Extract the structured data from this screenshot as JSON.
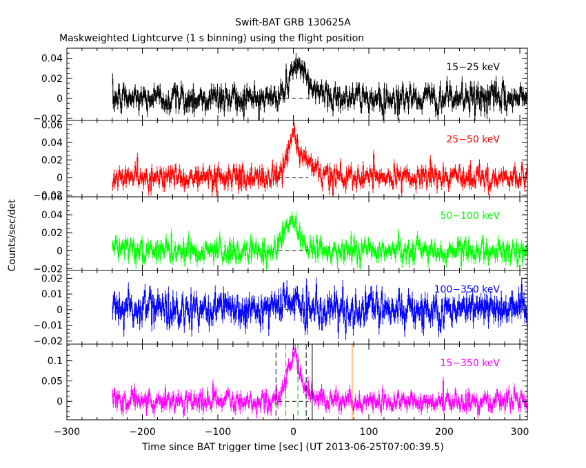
{
  "figure": {
    "title": "Swift-BAT GRB 130625A",
    "subtitle": "Maskweighted Lightcurve (1 s binning) using the flight position",
    "ylabel": "Counts/sec/det",
    "xlabel": "Time since BAT trigger time [sec] (UT 2013-06-25T07:00:39.5)"
  },
  "chart_data": {
    "type": "line",
    "shared_x": {
      "range": [
        -300,
        310
      ],
      "ticks": [
        -300,
        -200,
        -100,
        0,
        100,
        200,
        300
      ],
      "tick_labels": [
        "−300",
        "−200",
        "−100",
        "0",
        "100",
        "200",
        "300"
      ],
      "data_start": -240,
      "data_end": 310,
      "bin": 1
    },
    "panels": [
      {
        "name": "15−25 keV",
        "color": "#000000",
        "ylim": [
          -0.022,
          0.05
        ],
        "yticks": [
          -0.02,
          0,
          0.02,
          0.04
        ],
        "ytick_labels": [
          "−0.02",
          "0",
          "0.02",
          "0.04"
        ],
        "noise_sigma": 0.007,
        "pulse": {
          "peak_time": 5,
          "peak_value": 0.035,
          "rise": 15,
          "decay": 18
        }
      },
      {
        "name": "25−50 keV",
        "color": "#ff0000",
        "ylim": [
          -0.022,
          0.065
        ],
        "yticks": [
          -0.02,
          0,
          0.02,
          0.04,
          0.06
        ],
        "ytick_labels": [
          "−0.02",
          "0",
          "0.02",
          "0.04",
          "0.06"
        ],
        "noise_sigma": 0.0065,
        "pulse": {
          "peak_time": 2,
          "peak_value": 0.045,
          "rise": 15,
          "decay": 13
        }
      },
      {
        "name": "50−100 keV",
        "color": "#00ff00",
        "ylim": [
          -0.022,
          0.06
        ],
        "yticks": [
          -0.02,
          0,
          0.02,
          0.04,
          0.06
        ],
        "ytick_labels": [
          "−0.02",
          "0",
          "0.02",
          "0.04",
          "0.06"
        ],
        "noise_sigma": 0.0065,
        "pulse": {
          "peak_time": 0,
          "peak_value": 0.035,
          "rise": 18,
          "decay": 10
        }
      },
      {
        "name": "100−350 keV",
        "color": "#0000ff",
        "ylim": [
          -0.022,
          0.025
        ],
        "yticks": [
          -0.02,
          -0.01,
          0,
          0.01,
          0.02
        ],
        "ytick_labels": [
          "−0.02",
          "−0.01",
          "0",
          "0.01",
          "0.02"
        ],
        "noise_sigma": 0.0055,
        "pulse": {
          "peak_time": -5,
          "peak_value": 0.006,
          "rise": 18,
          "decay": 12
        }
      },
      {
        "name": "15−350 keV",
        "color": "#ff00ff",
        "ylim": [
          -0.045,
          0.14
        ],
        "yticks": [
          0,
          0.05,
          0.1
        ],
        "ytick_labels": [
          "0",
          "0.05",
          "0.1"
        ],
        "noise_sigma": 0.013,
        "pulse": {
          "peak_time": 2,
          "peak_value": 0.11,
          "rise": 16,
          "decay": 13
        },
        "markers": [
          {
            "x": -23,
            "color": "#000000",
            "style": "dashed"
          },
          {
            "x": 17,
            "color": "#000000",
            "style": "dashed"
          },
          {
            "x": -10,
            "color": "#00c000",
            "style": "dashed"
          },
          {
            "x": 6,
            "color": "#00c000",
            "style": "dashed"
          },
          {
            "x": 25,
            "color": "#000000",
            "style": "solid"
          },
          {
            "x": 78,
            "color": "#ff8c00",
            "style": "solid"
          }
        ]
      }
    ]
  }
}
